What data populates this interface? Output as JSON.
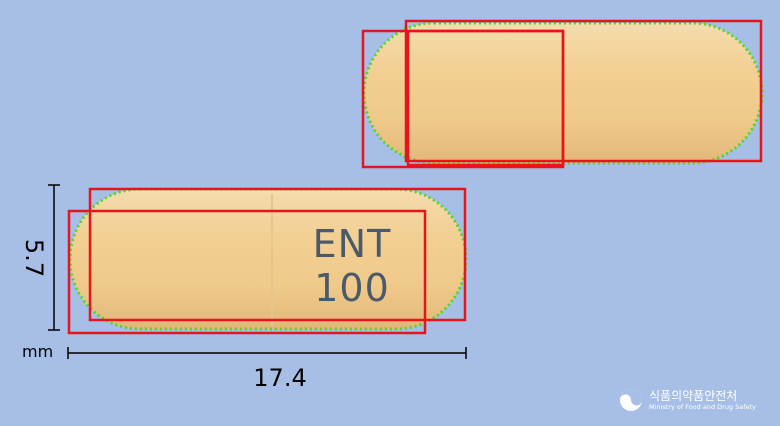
{
  "capsule_back": {},
  "capsule_front": {
    "imprint_line1": "ENT",
    "imprint_line2": "100"
  },
  "measurements": {
    "height_value": "5.7",
    "length_value": "17.4",
    "unit": "mm"
  },
  "logo": {
    "korean_name": "식품의약품안전처",
    "english_name": "Ministry of Food and Drug Safety"
  },
  "colors": {
    "background": "#a7bfe6",
    "capsule": "#f1cf95",
    "box": "#e8141c",
    "contour": "#4cd91f"
  }
}
